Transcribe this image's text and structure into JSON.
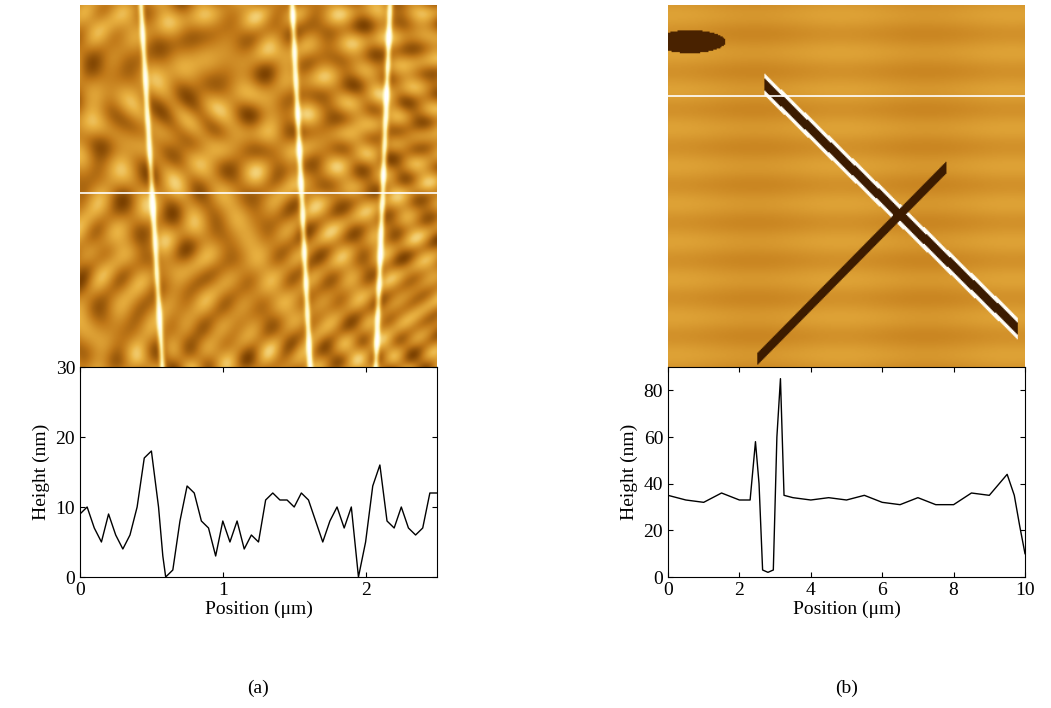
{
  "chart_data": [
    {
      "type": "line",
      "x_label": "Position (μm)",
      "y_label": "Height (nm)",
      "annotations": [
        "(a)"
      ],
      "x": [
        0,
        0.05,
        0.1,
        0.15,
        0.2,
        0.25,
        0.3,
        0.35,
        0.4,
        0.45,
        0.5,
        0.55,
        0.58,
        0.6,
        0.65,
        0.7,
        0.75,
        0.8,
        0.85,
        0.9,
        0.95,
        1.0,
        1.05,
        1.1,
        1.15,
        1.2,
        1.25,
        1.3,
        1.35,
        1.4,
        1.45,
        1.5,
        1.55,
        1.6,
        1.65,
        1.7,
        1.75,
        1.8,
        1.85,
        1.9,
        1.95,
        2.0,
        2.05,
        2.1,
        2.15,
        2.2,
        2.25,
        2.3,
        2.35,
        2.4,
        2.45,
        2.5
      ],
      "values": [
        9,
        10,
        7,
        5,
        9,
        6,
        4,
        6,
        10,
        17,
        18,
        10,
        3,
        0,
        1,
        8,
        13,
        12,
        8,
        7,
        3,
        8,
        5,
        8,
        4,
        6,
        5,
        11,
        12,
        11,
        11,
        10,
        12,
        11,
        8,
        5,
        8,
        10,
        7,
        10,
        0,
        5,
        13,
        16,
        8,
        7,
        10,
        7,
        6,
        7,
        12,
        12
      ],
      "color": "#000000",
      "xlim": [
        0,
        2.5
      ],
      "xticks": [
        0,
        1,
        2
      ],
      "ylim": [
        0,
        30
      ],
      "yticks": [
        0,
        10,
        20,
        30
      ]
    },
    {
      "type": "line",
      "x_label": "Position (μm)",
      "y_label": "Height (nm)",
      "annotations": [
        "(b)"
      ],
      "x": [
        0,
        0.5,
        1,
        1.5,
        2,
        2.3,
        2.45,
        2.55,
        2.65,
        2.8,
        2.95,
        3.05,
        3.15,
        3.25,
        3.5,
        4,
        4.5,
        5,
        5.5,
        6,
        6.5,
        7,
        7.5,
        8,
        8.5,
        9,
        9.5,
        9.7,
        9.85,
        10
      ],
      "values": [
        35,
        33,
        32,
        36,
        33,
        33,
        58,
        40,
        3,
        2,
        3,
        60,
        85,
        35,
        34,
        33,
        34,
        33,
        35,
        32,
        31,
        34,
        31,
        31,
        36,
        35,
        44,
        35,
        22,
        10
      ],
      "color": "#000000",
      "xlim": [
        0,
        10
      ],
      "xticks": [
        0,
        2,
        4,
        6,
        8,
        10
      ],
      "ylim": [
        0,
        90
      ],
      "yticks": [
        0,
        20,
        40,
        60,
        80
      ]
    }
  ]
}
